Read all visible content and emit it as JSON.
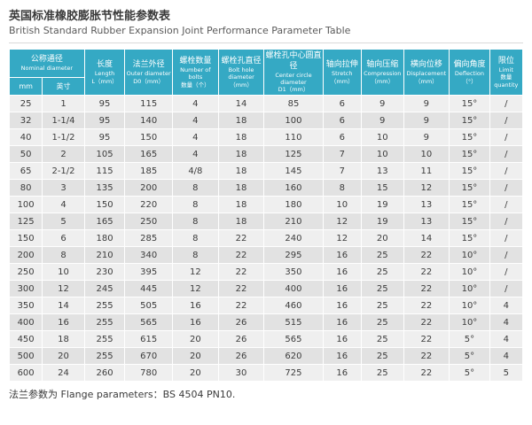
{
  "title_zh": "英国标准橡胶膨胀节性能参数表",
  "title_en": "British Standard Rubber Expansion Joint Performance Parameter Table",
  "footer": "法兰参数为 Flange parameters：BS 4504 PN10.",
  "colors": {
    "header_bg": "#35a9c4",
    "row_odd": "#efefef",
    "row_even": "#e2e2e2"
  },
  "table": {
    "group_header": {
      "zh": "公称通径",
      "en": "Nominal diameter",
      "sub": [
        "mm",
        "英寸"
      ]
    },
    "columns": [
      {
        "zh": "长度",
        "en": "Length",
        "unit": "L（mm）"
      },
      {
        "zh": "法兰外径",
        "en": "Outer diameter",
        "unit": "D0（mm）"
      },
      {
        "zh": "螺栓数量",
        "en": "Number of bolts",
        "unit": "数量（个）"
      },
      {
        "zh": "螺栓孔直径",
        "en": "Bolt hole diameter",
        "unit": "（mm）"
      },
      {
        "zh": "螺栓孔中心圆直径",
        "en": "Center circle diameter",
        "unit": "D1（mm）"
      },
      {
        "zh": "轴向拉伸",
        "en": "Stretch",
        "unit": "（mm）"
      },
      {
        "zh": "轴向压缩",
        "en": "Compression",
        "unit": "（mm）"
      },
      {
        "zh": "横向位移",
        "en": "Displacement",
        "unit": "（mm）"
      },
      {
        "zh": "偏向角度",
        "en": "Deflection",
        "unit": "（°）"
      },
      {
        "zh": "限位",
        "en": "Limit",
        "unit": "数量 quantity"
      }
    ],
    "rows": [
      [
        "25",
        "1",
        "95",
        "115",
        "4",
        "14",
        "85",
        "6",
        "9",
        "9",
        "15°",
        "/"
      ],
      [
        "32",
        "1-1/4",
        "95",
        "140",
        "4",
        "18",
        "100",
        "6",
        "9",
        "9",
        "15°",
        "/"
      ],
      [
        "40",
        "1-1/2",
        "95",
        "150",
        "4",
        "18",
        "110",
        "6",
        "10",
        "9",
        "15°",
        "/"
      ],
      [
        "50",
        "2",
        "105",
        "165",
        "4",
        "18",
        "125",
        "7",
        "10",
        "10",
        "15°",
        "/"
      ],
      [
        "65",
        "2-1/2",
        "115",
        "185",
        "4/8",
        "18",
        "145",
        "7",
        "13",
        "11",
        "15°",
        "/"
      ],
      [
        "80",
        "3",
        "135",
        "200",
        "8",
        "18",
        "160",
        "8",
        "15",
        "12",
        "15°",
        "/"
      ],
      [
        "100",
        "4",
        "150",
        "220",
        "8",
        "18",
        "180",
        "10",
        "19",
        "13",
        "15°",
        "/"
      ],
      [
        "125",
        "5",
        "165",
        "250",
        "8",
        "18",
        "210",
        "12",
        "19",
        "13",
        "15°",
        "/"
      ],
      [
        "150",
        "6",
        "180",
        "285",
        "8",
        "22",
        "240",
        "12",
        "20",
        "14",
        "15°",
        "/"
      ],
      [
        "200",
        "8",
        "210",
        "340",
        "8",
        "22",
        "295",
        "16",
        "25",
        "22",
        "10°",
        "/"
      ],
      [
        "250",
        "10",
        "230",
        "395",
        "12",
        "22",
        "350",
        "16",
        "25",
        "22",
        "10°",
        "/"
      ],
      [
        "300",
        "12",
        "245",
        "445",
        "12",
        "22",
        "400",
        "16",
        "25",
        "22",
        "10°",
        "/"
      ],
      [
        "350",
        "14",
        "255",
        "505",
        "16",
        "22",
        "460",
        "16",
        "25",
        "22",
        "10°",
        "4"
      ],
      [
        "400",
        "16",
        "255",
        "565",
        "16",
        "26",
        "515",
        "16",
        "25",
        "22",
        "10°",
        "4"
      ],
      [
        "450",
        "18",
        "255",
        "615",
        "20",
        "26",
        "565",
        "16",
        "25",
        "22",
        "5°",
        "4"
      ],
      [
        "500",
        "20",
        "255",
        "670",
        "20",
        "26",
        "620",
        "16",
        "25",
        "22",
        "5°",
        "4"
      ],
      [
        "600",
        "24",
        "260",
        "780",
        "20",
        "30",
        "725",
        "16",
        "25",
        "22",
        "5°",
        "5"
      ]
    ]
  }
}
